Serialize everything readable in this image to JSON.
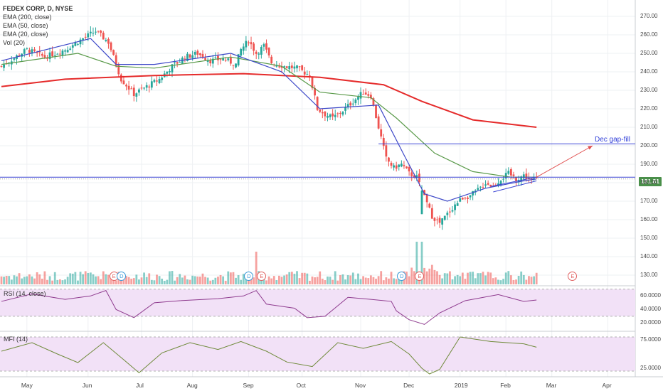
{
  "header": {
    "title": "FEDEX CORP, D, NYSE",
    "indicators": [
      "EMA (200, close)",
      "EMA (50, close)",
      "EMA (20, close)",
      "Vol (20)"
    ]
  },
  "panes": {
    "rsi_label": "RSI (14, close)",
    "mfi_label": "MFI (14)"
  },
  "price_tag": "181.81",
  "annotation": "Dec gap-fill",
  "colors": {
    "up": "#26a69a",
    "down": "#ef5350",
    "ema200": "#e52b2b",
    "ema50": "#5a9a4a",
    "ema20": "#3e49c8",
    "line_annotation": "#3b45d4",
    "arrow": "#e05050",
    "rsi_line": "#8e3a8e",
    "mfi_line": "#6f8a3a",
    "pane_fill": "#f2e1f7",
    "price_tag_bg": "#4a8f4a"
  },
  "chart_data": {
    "type": "candlestick",
    "title": "FEDEX CORP, D, NYSE",
    "x_ticks": [
      "May",
      "Jun",
      "Jul",
      "Aug",
      "Sep",
      "Oct",
      "Nov",
      "Dec",
      "2019",
      "Feb",
      "Mar",
      "Apr"
    ],
    "price_axis": {
      "ticks": [
        130,
        140,
        150,
        160,
        170,
        180,
        190,
        200,
        210,
        220,
        230,
        240,
        250,
        260,
        270
      ],
      "range": [
        125,
        275
      ]
    },
    "last_price": 181.81,
    "close_path": [
      [
        0,
        243
      ],
      [
        10,
        252
      ],
      [
        17,
        248
      ],
      [
        25,
        252
      ],
      [
        32,
        258
      ],
      [
        37,
        262
      ],
      [
        42,
        256
      ],
      [
        47,
        236
      ],
      [
        52,
        228
      ],
      [
        57,
        232
      ],
      [
        62,
        236
      ],
      [
        67,
        243
      ],
      [
        72,
        248
      ],
      [
        77,
        250
      ],
      [
        82,
        246
      ],
      [
        87,
        247
      ],
      [
        92,
        244
      ],
      [
        94,
        252
      ],
      [
        97,
        257
      ],
      [
        100,
        250
      ],
      [
        103,
        254
      ],
      [
        106,
        245
      ],
      [
        111,
        243
      ],
      [
        116,
        242
      ],
      [
        121,
        238
      ],
      [
        124,
        220
      ],
      [
        127,
        217
      ],
      [
        130,
        215
      ],
      [
        134,
        219
      ],
      [
        138,
        224
      ],
      [
        142,
        229
      ],
      [
        145,
        227
      ],
      [
        148,
        210
      ],
      [
        151,
        193
      ],
      [
        154,
        188
      ],
      [
        157,
        190
      ],
      [
        160,
        185
      ],
      [
        163,
        183
      ],
      [
        166,
        172
      ],
      [
        169,
        162
      ],
      [
        172,
        158
      ],
      [
        175,
        163
      ],
      [
        178,
        168
      ],
      [
        181,
        172
      ],
      [
        184,
        173
      ],
      [
        187,
        176
      ],
      [
        190,
        180
      ],
      [
        193,
        178
      ],
      [
        196,
        182
      ],
      [
        199,
        185
      ],
      [
        202,
        182
      ],
      [
        205,
        184
      ],
      [
        208,
        181
      ],
      [
        210,
        182
      ]
    ],
    "series": [
      {
        "name": "EMA (200, close)",
        "values": [
          [
            0,
            232
          ],
          [
            25,
            236
          ],
          [
            60,
            238
          ],
          [
            95,
            239
          ],
          [
            125,
            237
          ],
          [
            150,
            233
          ],
          [
            165,
            224
          ],
          [
            185,
            214
          ],
          [
            210,
            210
          ]
        ]
      },
      {
        "name": "EMA (50, close)",
        "values": [
          [
            0,
            244
          ],
          [
            30,
            250
          ],
          [
            45,
            243
          ],
          [
            60,
            242
          ],
          [
            90,
            248
          ],
          [
            110,
            243
          ],
          [
            125,
            229
          ],
          [
            145,
            226
          ],
          [
            155,
            215
          ],
          [
            170,
            196
          ],
          [
            185,
            186
          ],
          [
            200,
            183
          ],
          [
            210,
            183
          ]
        ]
      },
      {
        "name": "EMA (20, close)",
        "values": [
          [
            0,
            246
          ],
          [
            35,
            258
          ],
          [
            45,
            244
          ],
          [
            60,
            244
          ],
          [
            90,
            250
          ],
          [
            110,
            240
          ],
          [
            125,
            220
          ],
          [
            148,
            222
          ],
          [
            158,
            195
          ],
          [
            166,
            174
          ],
          [
            175,
            170
          ],
          [
            190,
            177
          ],
          [
            205,
            181
          ],
          [
            210,
            182
          ]
        ]
      }
    ],
    "horizontal_lines": [
      {
        "value": 201,
        "label": "Dec gap-fill"
      },
      {
        "value": 183
      },
      {
        "value": 182
      }
    ],
    "trendlines": [
      {
        "from": [
          192,
          178
        ],
        "to": [
          210,
          183
        ]
      },
      {
        "from": [
          193,
          175
        ],
        "to": [
          210,
          181
        ]
      }
    ],
    "arrow": {
      "from": [
        210,
        183
      ],
      "to": [
        232,
        200
      ]
    },
    "events": [
      {
        "label": "E",
        "t": 44
      },
      {
        "label": "D",
        "t": 47
      },
      {
        "label": "D",
        "t": 97
      },
      {
        "label": "E",
        "t": 102
      },
      {
        "label": "D",
        "t": 157
      },
      {
        "label": "E",
        "t": 164
      },
      {
        "label": "E",
        "t": 224
      }
    ],
    "rsi": {
      "label": "RSI (14, close)",
      "ticks": [
        "60.0000",
        "40.0000",
        "20.0000"
      ],
      "range": [
        10,
        75
      ],
      "values": [
        [
          0,
          52
        ],
        [
          12,
          63
        ],
        [
          25,
          55
        ],
        [
          35,
          60
        ],
        [
          41,
          68
        ],
        [
          45,
          40
        ],
        [
          52,
          28
        ],
        [
          60,
          50
        ],
        [
          70,
          53
        ],
        [
          85,
          56
        ],
        [
          95,
          60
        ],
        [
          100,
          68
        ],
        [
          104,
          48
        ],
        [
          115,
          42
        ],
        [
          120,
          28
        ],
        [
          127,
          30
        ],
        [
          136,
          58
        ],
        [
          145,
          55
        ],
        [
          153,
          52
        ],
        [
          155,
          38
        ],
        [
          160,
          25
        ],
        [
          166,
          18
        ],
        [
          172,
          35
        ],
        [
          182,
          53
        ],
        [
          195,
          62
        ],
        [
          205,
          52
        ],
        [
          210,
          54
        ]
      ]
    },
    "mfi": {
      "label": "MFI (14)",
      "ticks": [
        "75.0000",
        "25.0000"
      ],
      "range": [
        10,
        90
      ],
      "values": [
        [
          0,
          55
        ],
        [
          12,
          70
        ],
        [
          22,
          50
        ],
        [
          30,
          35
        ],
        [
          40,
          70
        ],
        [
          48,
          40
        ],
        [
          54,
          17
        ],
        [
          63,
          52
        ],
        [
          74,
          70
        ],
        [
          85,
          58
        ],
        [
          94,
          72
        ],
        [
          104,
          55
        ],
        [
          112,
          36
        ],
        [
          122,
          28
        ],
        [
          132,
          70
        ],
        [
          142,
          60
        ],
        [
          153,
          72
        ],
        [
          160,
          50
        ],
        [
          165,
          25
        ],
        [
          168,
          15
        ],
        [
          172,
          23
        ],
        [
          180,
          80
        ],
        [
          192,
          72
        ],
        [
          205,
          68
        ],
        [
          210,
          62
        ]
      ]
    }
  }
}
